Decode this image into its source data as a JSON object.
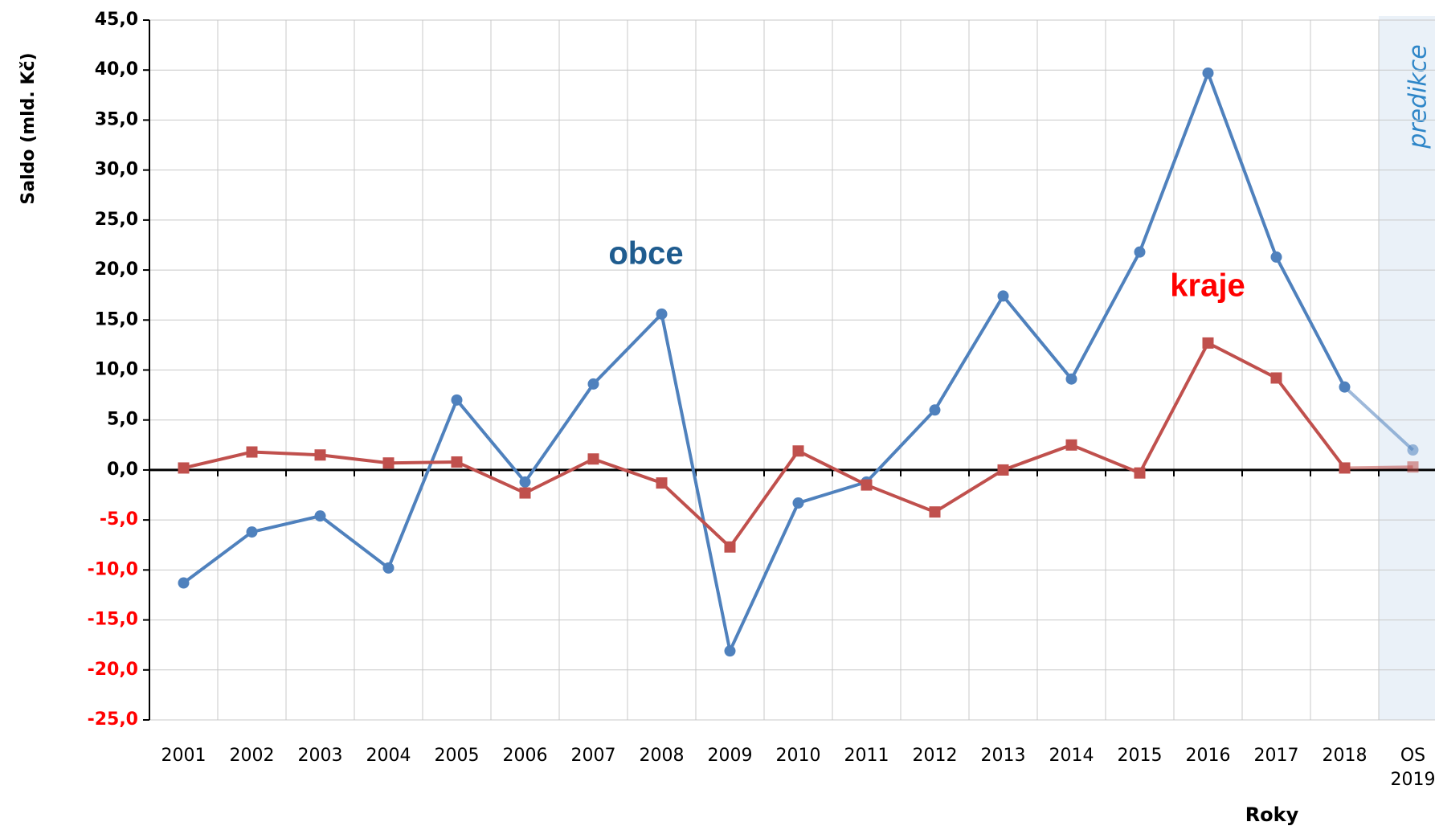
{
  "chart_data": {
    "type": "line",
    "y_label": "Saldo (mld. Kč)",
    "x_label": "Roky",
    "annotations": {
      "obce": "obce",
      "kraje": "kraje",
      "predikce": "predikce"
    },
    "categories": [
      "2001",
      "2002",
      "2003",
      "2004",
      "2005",
      "2006",
      "2007",
      "2008",
      "2009",
      "2010",
      "2011",
      "2012",
      "2013",
      "2014",
      "2015",
      "2016",
      "2017",
      "2018",
      "OS 2019"
    ],
    "series": [
      {
        "name": "obce",
        "color": "#4f81bd",
        "values": [
          -11.3,
          -6.2,
          -4.6,
          -9.8,
          7.0,
          -1.2,
          8.6,
          15.6,
          -18.1,
          -3.3,
          -1.2,
          6.0,
          17.4,
          9.1,
          21.8,
          39.7,
          21.3,
          8.3,
          2.0
        ]
      },
      {
        "name": "kraje",
        "color": "#c0504d",
        "values": [
          0.2,
          1.8,
          1.5,
          0.7,
          0.8,
          -2.3,
          1.1,
          -1.3,
          -7.7,
          1.9,
          -1.5,
          -4.2,
          0.0,
          2.5,
          -0.3,
          12.7,
          9.2,
          0.2,
          0.3
        ]
      }
    ],
    "ylim": [
      -25,
      45
    ],
    "yticks": [
      {
        "value": -25,
        "label": "-25,0"
      },
      {
        "value": -20,
        "label": "-20,0"
      },
      {
        "value": -15,
        "label": "-15,0"
      },
      {
        "value": -10,
        "label": "-10,0"
      },
      {
        "value": -5,
        "label": "-5,0"
      },
      {
        "value": 0,
        "label": "0,0"
      },
      {
        "value": 5,
        "label": "5,0"
      },
      {
        "value": 10,
        "label": "10,0"
      },
      {
        "value": 15,
        "label": "15,0"
      },
      {
        "value": 20,
        "label": "20,0"
      },
      {
        "value": 25,
        "label": "25,0"
      },
      {
        "value": 30,
        "label": "30,0"
      },
      {
        "value": 35,
        "label": "35,0"
      },
      {
        "value": 40,
        "label": "40,0"
      },
      {
        "value": 45,
        "label": "45,0"
      }
    ],
    "negative_tick_color": "#ff0000",
    "prediction_from": "OS 2019",
    "grid": true
  }
}
